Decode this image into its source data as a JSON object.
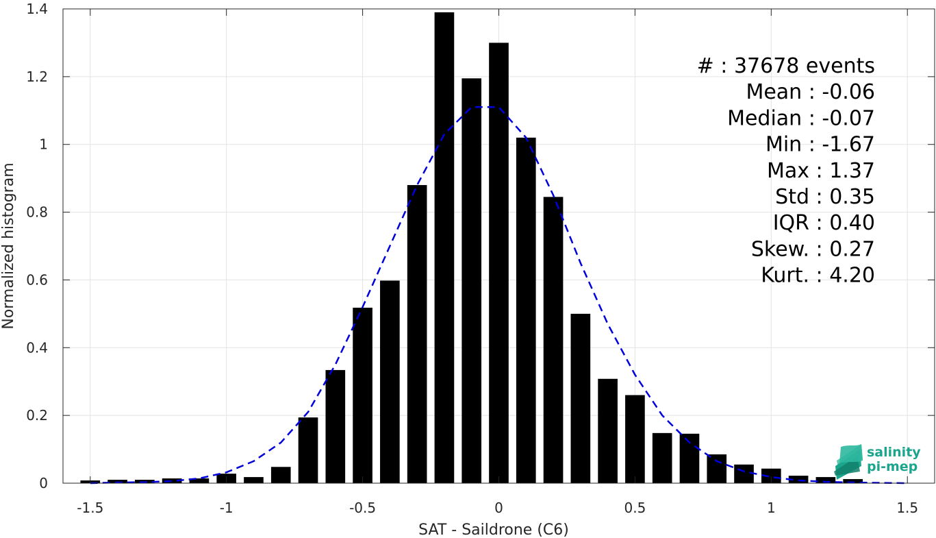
{
  "chart_data": {
    "type": "bar",
    "xlabel": "SAT - Saildrone (C6)",
    "ylabel": "Normalized histogram",
    "xlim": [
      -1.6,
      1.6
    ],
    "ylim": [
      0,
      1.4
    ],
    "grid": true,
    "x_ticks": [
      -1.5,
      -1,
      -0.5,
      0,
      0.5,
      1,
      1.5
    ],
    "x_tick_labels": [
      "-1.5",
      "-1",
      "-0.5",
      "0",
      "0.5",
      "1",
      "1.5"
    ],
    "y_ticks": [
      0,
      0.2,
      0.4,
      0.6,
      0.8,
      1,
      1.2,
      1.4
    ],
    "y_tick_labels": [
      "0",
      "0.2",
      "0.4",
      "0.6",
      "0.8",
      "1",
      "1.2",
      "1.4"
    ],
    "bar_color": "#000000",
    "bin_centers": [
      -1.5,
      -1.4,
      -1.3,
      -1.2,
      -1.1,
      -1.0,
      -0.9,
      -0.8,
      -0.7,
      -0.6,
      -0.5,
      -0.4,
      -0.3,
      -0.2,
      -0.1,
      0.0,
      0.1,
      0.2,
      0.3,
      0.4,
      0.5,
      0.6,
      0.7,
      0.8,
      0.9,
      1.0,
      1.1,
      1.2,
      1.3
    ],
    "values": [
      0.008,
      0.01,
      0.01,
      0.014,
      0.014,
      0.028,
      0.018,
      0.048,
      0.194,
      0.334,
      0.518,
      0.598,
      0.88,
      1.39,
      1.195,
      1.3,
      1.02,
      0.845,
      0.5,
      0.308,
      0.26,
      0.148,
      0.146,
      0.085,
      0.055,
      0.043,
      0.022,
      0.018,
      0.012
    ],
    "fit_curve": {
      "color": "#0000dd",
      "style": "dashed",
      "x": [
        -1.5,
        -1.4,
        -1.3,
        -1.2,
        -1.1,
        -1.0,
        -0.9,
        -0.8,
        -0.7,
        -0.6,
        -0.5,
        -0.4,
        -0.3,
        -0.2,
        -0.1,
        0.0,
        0.1,
        0.2,
        0.3,
        0.4,
        0.5,
        0.6,
        0.7,
        0.8,
        0.9,
        1.0,
        1.1,
        1.2,
        1.3,
        1.4,
        1.5
      ],
      "y": [
        0.0,
        0.002,
        0.003,
        0.006,
        0.014,
        0.032,
        0.065,
        0.12,
        0.21,
        0.35,
        0.52,
        0.7,
        0.88,
        1.03,
        1.11,
        1.11,
        1.02,
        0.85,
        0.65,
        0.47,
        0.32,
        0.2,
        0.12,
        0.065,
        0.035,
        0.018,
        0.008,
        0.004,
        0.002,
        0.001,
        0.0
      ]
    },
    "stats": [
      {
        "label": "#  ",
        "value": ": 37678 events"
      },
      {
        "label": "Mean ",
        "value": ": -0.06"
      },
      {
        "label": "Median ",
        "value": ": -0.07"
      },
      {
        "label": "Min ",
        "value": ": -1.67"
      },
      {
        "label": "Max ",
        "value": ": 1.37"
      },
      {
        "label": "Std ",
        "value": ": 0.35"
      },
      {
        "label": "IQR ",
        "value": ": 0.40"
      },
      {
        "label": "Skew. ",
        "value": ": 0.27"
      },
      {
        "label": "Kurt. ",
        "value": ": 4.20"
      }
    ]
  },
  "logo": {
    "line1": "salinity",
    "line2": "pi-mep",
    "colors": {
      "primary": "#1aa58c",
      "dark": "#12806b",
      "light": "#5cc9b0"
    }
  }
}
